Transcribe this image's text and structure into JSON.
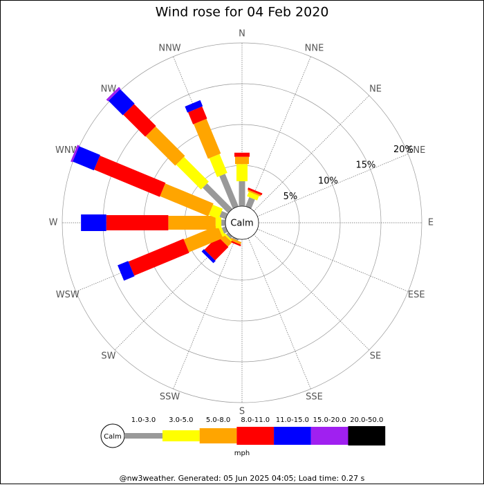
{
  "chart_data": {
    "type": "wind_rose",
    "title": "Wind rose for 04 Feb 2020",
    "categories": [
      "N",
      "NNE",
      "NE",
      "ENE",
      "E",
      "ESE",
      "SE",
      "SSE",
      "S",
      "SSW",
      "SW",
      "WSW",
      "W",
      "WNW",
      "NW",
      "NNW"
    ],
    "center_label": "Calm",
    "rlim": [
      0,
      20
    ],
    "rticks": [
      {
        "value": 5,
        "label": "5%"
      },
      {
        "value": 10,
        "label": "10%"
      },
      {
        "value": 15,
        "label": "15%"
      },
      {
        "value": 20,
        "label": "20%"
      }
    ],
    "legend_unit": "mph",
    "series": [
      {
        "name": "1.0-3.0",
        "color": "#999999",
        "values": [
          3.05,
          1.2,
          0,
          0,
          0,
          0,
          0,
          0,
          0,
          0.2,
          0.35,
          0.5,
          0.5,
          0.8,
          4.4,
          4.3
        ]
      },
      {
        "name": "3.0-5.0",
        "color": "#ffff00",
        "values": [
          2.1,
          0.6,
          0,
          0,
          0,
          0,
          0,
          0,
          0,
          0,
          0.2,
          0.35,
          0.7,
          1.3,
          4.3,
          2.5
        ]
      },
      {
        "name": "5.0-8.0",
        "color": "#ffa500",
        "values": [
          0.9,
          0.2,
          0,
          0,
          0,
          0,
          0,
          0,
          0,
          0.3,
          0.7,
          4.5,
          5.8,
          6.4,
          5.1,
          4.6
        ]
      },
      {
        "name": "8.0-11.0",
        "color": "#ff0000",
        "values": [
          0.5,
          0.25,
          0,
          0,
          0,
          0,
          0,
          0,
          0,
          0.2,
          2.3,
          7.3,
          7.6,
          8.7,
          3.8,
          1.6
        ]
      },
      {
        "name": "11.0-15.0",
        "color": "#0000ff",
        "values": [
          0,
          0,
          0,
          0,
          0,
          0,
          0,
          0,
          0,
          0,
          0.4,
          1.4,
          3.1,
          2.8,
          2.5,
          0.8
        ]
      },
      {
        "name": "15.0-20.0",
        "color": "#a020f0",
        "values": [
          0,
          0,
          0,
          0,
          0,
          0,
          0,
          0,
          0,
          0,
          0,
          0,
          0,
          0.25,
          0.3,
          0
        ]
      },
      {
        "name": "20.0-50.0",
        "color": "#000000",
        "values": [
          0,
          0,
          0,
          0,
          0,
          0,
          0,
          0,
          0,
          0,
          0,
          0,
          0,
          0,
          0,
          0
        ]
      }
    ],
    "footer": "@nw3weather.  Generated: 05 Jun 2025 04:05; Load time: 0.27 s"
  }
}
